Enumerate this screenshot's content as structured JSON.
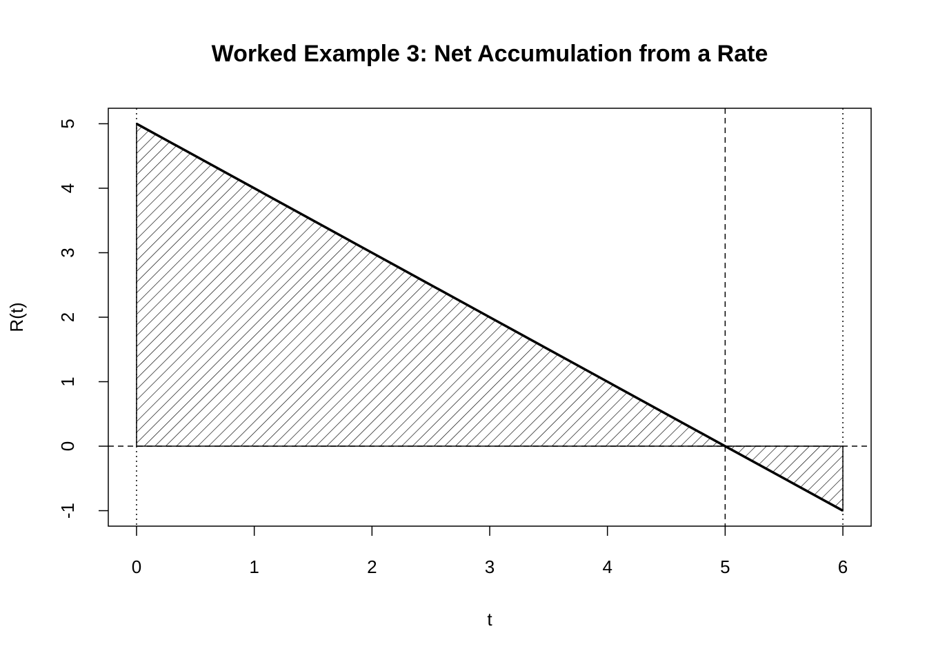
{
  "chart_data": {
    "type": "line",
    "title": "Worked Example 3: Net Accumulation from a Rate",
    "x_label": "t",
    "y_label": "R(t)",
    "x": [
      0,
      1,
      2,
      3,
      4,
      5,
      6
    ],
    "series": [
      {
        "name": "R(t)",
        "color": "#000000",
        "values": [
          5,
          4,
          3,
          2,
          1,
          0,
          -1
        ]
      }
    ],
    "shade": "hatched",
    "xlim": [
      -0.24,
      6.24
    ],
    "ylim": [
      -1.24,
      5.24
    ],
    "xticks": [
      0,
      1,
      2,
      3,
      4,
      5,
      6
    ],
    "yticks": [
      -1,
      0,
      1,
      2,
      3,
      4,
      5
    ],
    "vlines": [
      {
        "value": 0,
        "style": "dotted"
      },
      {
        "value": 5,
        "style": "dashed"
      },
      {
        "value": 6,
        "style": "dotted"
      }
    ],
    "hlines": [
      {
        "value": 0,
        "style": "dashed"
      }
    ]
  }
}
